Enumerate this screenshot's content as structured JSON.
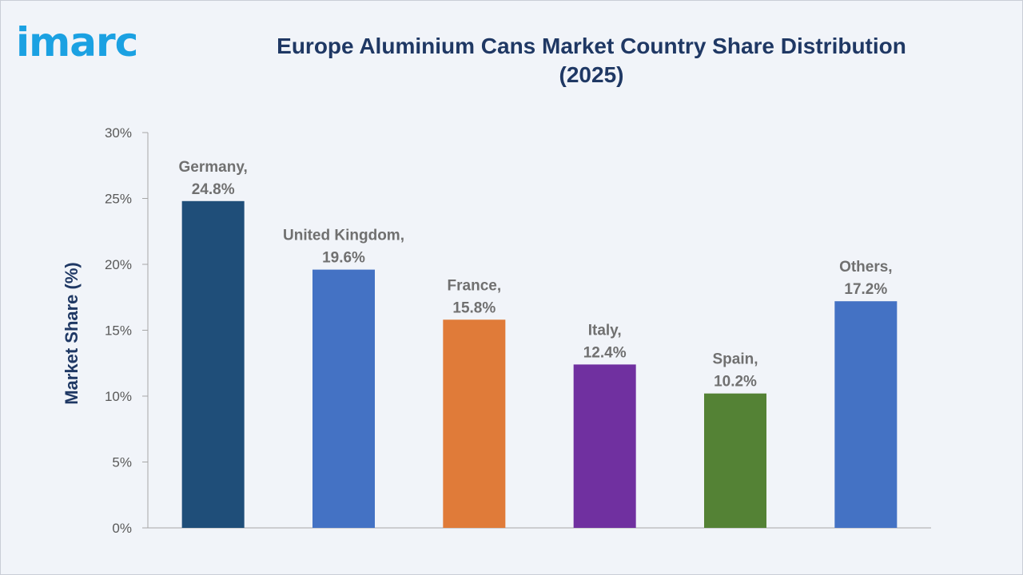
{
  "brand": {
    "logo_text": "imarc"
  },
  "chart_data": {
    "type": "bar",
    "title": "Europe Aluminium Cans Market Country Share Distribution (2025)",
    "xlabel": "",
    "ylabel": "Market Share (%)",
    "ylim": [
      0,
      30
    ],
    "yticks": [
      "0%",
      "5%",
      "10%",
      "15%",
      "20%",
      "25%",
      "30%"
    ],
    "grid": false,
    "categories": [
      "Germany",
      "United Kingdom",
      "France",
      "Italy",
      "Spain",
      "Others"
    ],
    "values": [
      24.8,
      19.6,
      15.8,
      12.4,
      10.2,
      17.2
    ],
    "value_labels": [
      "24.8%",
      "19.6%",
      "15.8%",
      "12.4%",
      "10.2%",
      "17.2%"
    ],
    "colors": [
      "#1f4e79",
      "#4472c4",
      "#e07b39",
      "#7030a0",
      "#548235",
      "#4472c4"
    ]
  }
}
